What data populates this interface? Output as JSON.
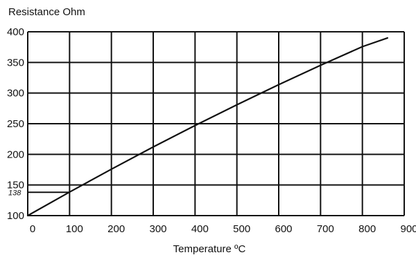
{
  "chart_data": {
    "type": "line",
    "title": "",
    "ylabel": "Resistance Ohm",
    "xlabel": "Temperature ºC",
    "xlim": [
      0,
      900
    ],
    "ylim": [
      100,
      400
    ],
    "grid": true,
    "x_ticks": [
      0,
      100,
      200,
      300,
      400,
      500,
      600,
      700,
      800,
      900
    ],
    "y_ticks": [
      100,
      150,
      200,
      250,
      300,
      350,
      400
    ],
    "x_tick_labels": [
      "0",
      "100",
      "200",
      "300",
      "400",
      "500",
      "600",
      "700",
      "800",
      "900"
    ],
    "y_tick_labels": [
      "100",
      "150",
      "200",
      "250",
      "300",
      "350",
      "400"
    ],
    "annotation_lines": [
      {
        "y": 138,
        "label": "138"
      }
    ],
    "series": [
      {
        "x": [
          0,
          100,
          200,
          300,
          400,
          500,
          600,
          700,
          800,
          860
        ],
        "values": [
          100,
          138.5,
          175.8,
          212.1,
          247.1,
          280.9,
          313.7,
          345.3,
          375.7,
          390
        ]
      }
    ],
    "colors": {
      "line": "#111111",
      "grid": "#111111"
    }
  }
}
